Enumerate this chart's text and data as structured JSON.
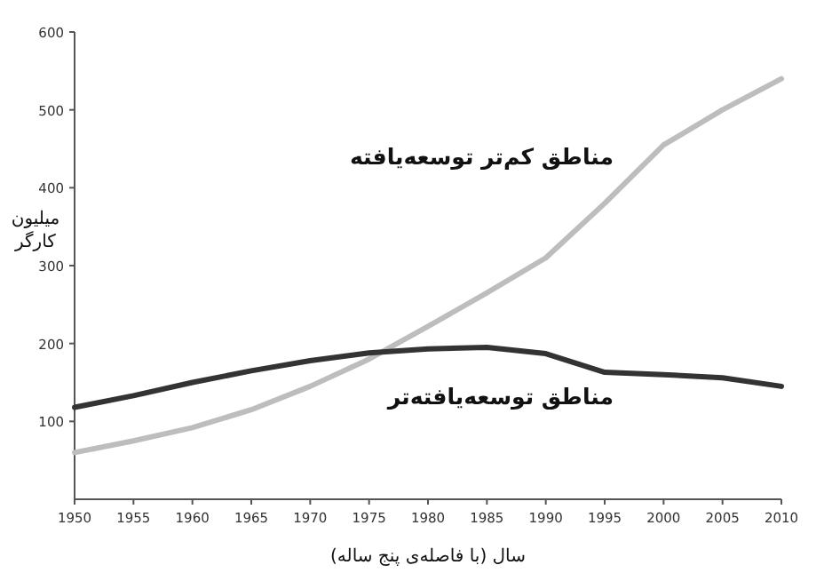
{
  "chart_data": {
    "type": "line",
    "x": [
      1950,
      1955,
      1960,
      1965,
      1970,
      1975,
      1980,
      1985,
      1990,
      1995,
      2000,
      2005,
      2010
    ],
    "series": [
      {
        "name": "مناطق کم‌تر توسعه‌یافته",
        "color": "#bdbdbd",
        "values": [
          60,
          75,
          92,
          115,
          145,
          180,
          222,
          265,
          310,
          380,
          455,
          500,
          540
        ]
      },
      {
        "name": "مناطق توسعه‌یافته‌تر",
        "color": "#333333",
        "values": [
          118,
          133,
          150,
          165,
          178,
          188,
          193,
          195,
          187,
          163,
          160,
          156,
          145
        ]
      }
    ],
    "xlabel": "سال (با فاصله‌ی پنج ساله)",
    "ylabel": "میلیون کارگر",
    "xlim": [
      1950,
      2010
    ],
    "xticks": [
      1950,
      1955,
      1960,
      1965,
      1970,
      1975,
      1980,
      1985,
      1990,
      1995,
      2000,
      2005,
      2010
    ],
    "ylim": [
      0,
      600
    ],
    "yticks": [
      100,
      200,
      300,
      400,
      500,
      600
    ],
    "grid": false,
    "legend": false,
    "marker": "none",
    "line_style": "solid"
  }
}
